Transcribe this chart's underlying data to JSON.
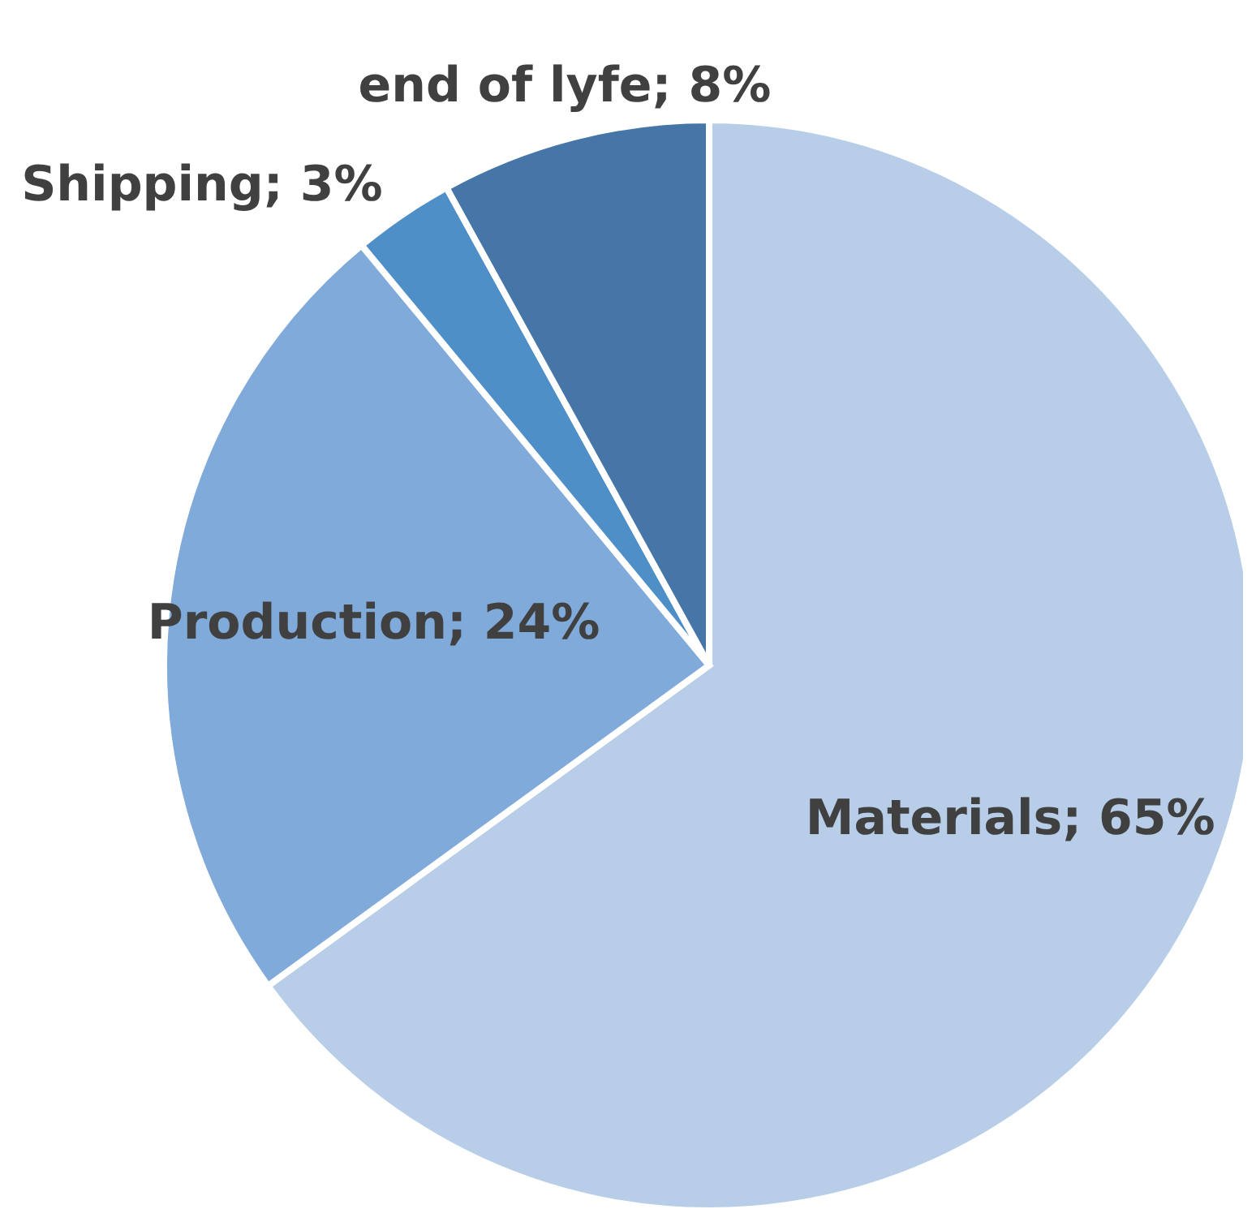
{
  "chart_data": {
    "type": "pie",
    "categories": [
      "Materials",
      "Production",
      "Shipping",
      "end of lyfe"
    ],
    "values": [
      65,
      24,
      3,
      8
    ],
    "colors": [
      "#b7cde8",
      "#80aad9",
      "#4f8fc8",
      "#4676a8"
    ],
    "data_labels": true,
    "value_labels": [
      "65%",
      "24%",
      "3%",
      "8%"
    ],
    "legend": false
  }
}
